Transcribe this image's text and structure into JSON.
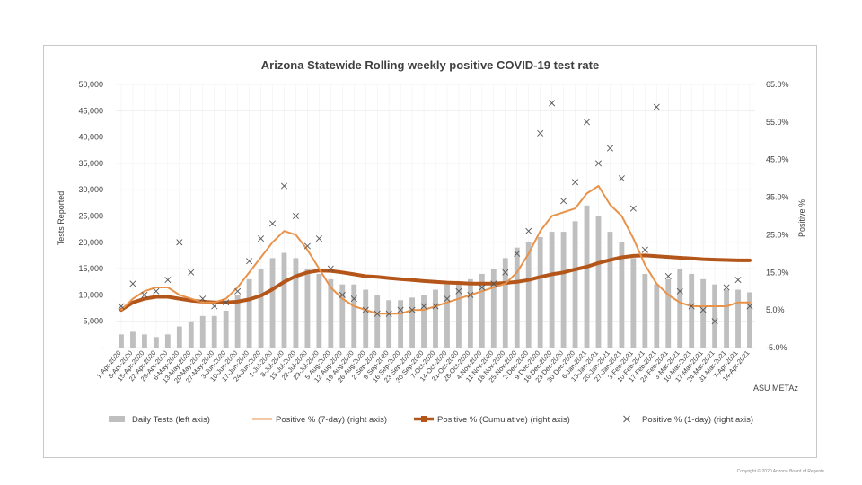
{
  "chart_data": {
    "type": "bar-line-combo",
    "title": "Arizona Statewide Rolling weekly positive COVID-19 test rate",
    "ylabel_left": "Tests Reported",
    "ylabel_right": "Positive %",
    "ylim_left": [
      0,
      50000
    ],
    "ylim_right": [
      -5,
      65
    ],
    "yticks_left": [
      "-",
      "5,000",
      "10,000",
      "15,000",
      "20,000",
      "25,000",
      "30,000",
      "35,000",
      "40,000",
      "45,000",
      "50,000"
    ],
    "yticks_right": [
      "-5.0%",
      "5.0%",
      "15.0%",
      "25.0%",
      "35.0%",
      "45.0%",
      "55.0%",
      "65.0%"
    ],
    "x_labels": [
      "1-Apr-2020",
      "8-Apr-2020",
      "15-Apr-2020",
      "22-Apr-2020",
      "29-Apr-2020",
      "6-May-2020",
      "13-May-2020",
      "20-May-2020",
      "27-May-2020",
      "3-Jun-2020",
      "10-Jun-2020",
      "17-Jun-2020",
      "24-Jun-2020",
      "1-Jul-2020",
      "8-Jul-2020",
      "15-Jul-2020",
      "22-Jul-2020",
      "29-Jul-2020",
      "5-Aug-2020",
      "12-Aug-2020",
      "19-Aug-2020",
      "26-Aug-2020",
      "2-Sep-2020",
      "9-Sep-2020",
      "16-Sep-2020",
      "23-Sep-2020",
      "30-Sep-2020",
      "7-Oct-2020",
      "14-Oct-2020",
      "21-Oct-2020",
      "28-Oct-2020",
      "4-Nov-2020",
      "11-Nov-2020",
      "18-Nov-2020",
      "25-Nov-2020",
      "2-Dec-2020",
      "9-Dec-2020",
      "16-Dec-2020",
      "23-Dec-2020",
      "30-Dec-2020",
      "6-Jan-2021",
      "13-Jan-2021",
      "20-Jan-2021",
      "27-Jan-2021",
      "3-Feb-2021",
      "10-Feb-2021",
      "17-Feb-2021",
      "24-Feb-2021",
      "3-Mar-2021",
      "10-Mar-2021",
      "17-Mar-2021",
      "24-Mar-2021",
      "31-Mar-2021",
      "7-Apr-2021",
      "14-Apr-2021"
    ],
    "series": [
      {
        "name": "Daily Tests (left axis)",
        "type": "bar",
        "color": "#bfbfbf",
        "weekly_values": [
          2500,
          3000,
          2500,
          2000,
          2500,
          4000,
          5000,
          6000,
          6000,
          7000,
          10000,
          13000,
          15000,
          17000,
          18000,
          17000,
          15000,
          14000,
          13000,
          12000,
          12000,
          11000,
          10000,
          9000,
          9000,
          9500,
          10000,
          11000,
          12000,
          12500,
          13000,
          14000,
          15000,
          17000,
          19000,
          20000,
          21000,
          22000,
          22000,
          24000,
          27000,
          25000,
          22000,
          20000,
          17000,
          14000,
          12000,
          13000,
          15000,
          14000,
          13000,
          12000,
          11000,
          11000,
          10500
        ]
      },
      {
        "name": "Positive % (7-day) (right axis)",
        "type": "line",
        "color": "#e8924a",
        "weekly_values": [
          5,
          8,
          10,
          11,
          11,
          9,
          8,
          7,
          7,
          8,
          11,
          15,
          19,
          23,
          26,
          25,
          21,
          16,
          11,
          8,
          6,
          5,
          4,
          4,
          4,
          5,
          5,
          6,
          7,
          8,
          9,
          10,
          11,
          12,
          15,
          20,
          26,
          30,
          31,
          32,
          36,
          38,
          33,
          30,
          24,
          17,
          12,
          9,
          7,
          6,
          6,
          6,
          6,
          7,
          7
        ]
      },
      {
        "name": "Positive % (Cumulative) (right axis)",
        "type": "line",
        "color": "#b4561a",
        "weekly_values": [
          5,
          7,
          8,
          8.5,
          8.5,
          8,
          7.5,
          7.2,
          7,
          7,
          7.2,
          7.8,
          8.8,
          10.5,
          12.5,
          14,
          15,
          15.5,
          15.4,
          15,
          14.5,
          14,
          13.8,
          13.5,
          13.2,
          13,
          12.7,
          12.5,
          12.3,
          12.2,
          12,
          12,
          12,
          12.2,
          12.5,
          13,
          13.8,
          14.5,
          15,
          15.8,
          16.5,
          17.5,
          18.3,
          19,
          19.4,
          19.5,
          19.3,
          19.1,
          18.9,
          18.7,
          18.5,
          18.4,
          18.3,
          18.2,
          18.2
        ]
      },
      {
        "name": "Positive % (1-day) (right axis)",
        "type": "scatter",
        "marker": "x",
        "color": "#555555",
        "weekly_values": [
          6,
          12,
          9,
          10,
          13,
          23,
          15,
          8,
          6,
          7,
          10,
          18,
          24,
          28,
          38,
          30,
          22,
          24,
          16,
          9,
          8,
          5,
          4,
          4,
          5,
          5,
          6,
          6,
          8,
          10,
          9,
          11,
          12,
          15,
          20,
          26,
          52,
          60,
          34,
          39,
          55,
          44,
          48,
          40,
          32,
          21,
          59,
          14,
          10,
          6,
          5,
          2,
          11,
          13,
          6
        ]
      }
    ],
    "legend": [
      "Daily Tests (left axis)",
      "Positive % (7-day) (right axis)",
      "Positive % (Cumulative) (right axis)",
      "Positive % (1-day) (right axis)"
    ],
    "legend_placement": "bottom",
    "source_label": "ASU METAz"
  },
  "footer": {
    "copyright": "Copyright © 2020 Arizona Board of Regents"
  }
}
